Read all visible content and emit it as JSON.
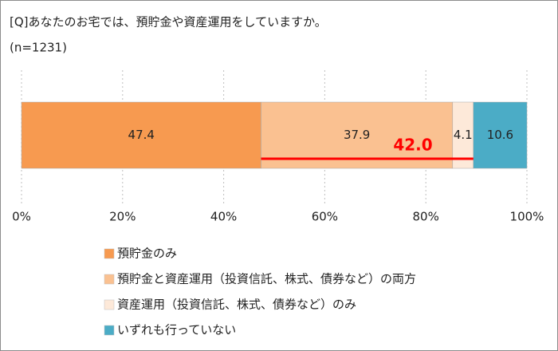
{
  "chart_data": {
    "type": "stacked-bar-horizontal",
    "title": "[Q]あなたのお宅では、預貯金や資産運用をしていますか。",
    "subtitle": "(n=1231)",
    "categories": [
      null
    ],
    "series": [
      {
        "name": "預貯金のみ",
        "color": "#f79a50",
        "values": [
          47.4
        ]
      },
      {
        "name": "預貯金と資産運用（投資信託、株式、債券など）の両方",
        "color": "#fac191",
        "values": [
          37.9
        ]
      },
      {
        "name": "資産運用（投資信託、株式、債券など）のみ",
        "color": "#fde9d9",
        "values": [
          4.1
        ]
      },
      {
        "name": "いずれも行っていない",
        "color": "#4bacc6",
        "values": [
          10.6
        ]
      }
    ],
    "annotation": {
      "text": "42.0",
      "color": "#ff0000"
    },
    "xlim": [
      0,
      100
    ],
    "xticks": [
      {
        "value": 0,
        "label": "0%"
      },
      {
        "value": 20,
        "label": "20%"
      },
      {
        "value": 40,
        "label": "40%"
      },
      {
        "value": 60,
        "label": "60%"
      },
      {
        "value": 80,
        "label": "80%"
      },
      {
        "value": 100,
        "label": "100%"
      }
    ],
    "grid": true
  }
}
